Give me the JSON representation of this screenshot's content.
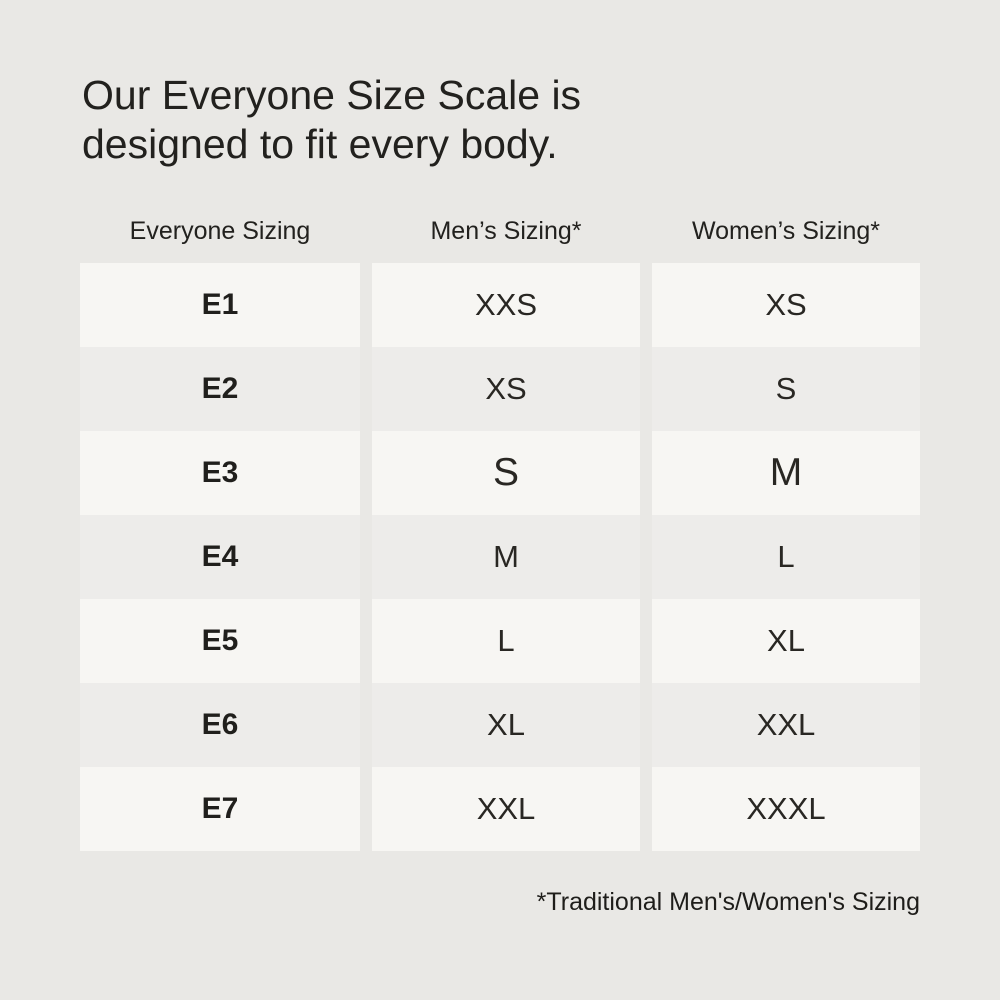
{
  "page": {
    "background_color": "#e9e8e5",
    "row_light_color": "#f7f6f3",
    "row_dark_color": "#edecea",
    "text_color": "#22211e"
  },
  "title": {
    "line1": "Our Everyone Size Scale is",
    "line2": "designed to fit every body."
  },
  "table": {
    "headers": [
      "Everyone Sizing",
      "Men’s Sizing*",
      "Women’s Sizing*"
    ],
    "rows": [
      {
        "everyone": "E1",
        "mens": "XXS",
        "womens": "XS"
      },
      {
        "everyone": "E2",
        "mens": "XS",
        "womens": "S"
      },
      {
        "everyone": "E3",
        "mens": "S",
        "womens": "M"
      },
      {
        "everyone": "E4",
        "mens": "M",
        "womens": "L"
      },
      {
        "everyone": "E5",
        "mens": "L",
        "womens": "XL"
      },
      {
        "everyone": "E6",
        "mens": "XL",
        "womens": "XXL"
      },
      {
        "everyone": "E7",
        "mens": "XXL",
        "womens": "XXXL"
      }
    ]
  },
  "footnote": {
    "text": "*Traditional Men's/Women's Sizing"
  },
  "chart_data": {
    "type": "table",
    "title": "Our Everyone Size Scale is designed to fit every body.",
    "columns": [
      "Everyone Sizing",
      "Men’s Sizing*",
      "Women’s Sizing*"
    ],
    "rows": [
      [
        "E1",
        "XXS",
        "XS"
      ],
      [
        "E2",
        "XS",
        "S"
      ],
      [
        "E3",
        "S",
        "M"
      ],
      [
        "E4",
        "M",
        "L"
      ],
      [
        "E5",
        "L",
        "XL"
      ],
      [
        "E6",
        "XL",
        "XXL"
      ],
      [
        "E7",
        "XXL",
        "XXXL"
      ]
    ],
    "footnote": "*Traditional Men's/Women's Sizing",
    "layout": {
      "row_striping": "alternating light/medium",
      "column_gaps": true,
      "header_outside_table": true,
      "footnote_alignment": "right"
    }
  }
}
